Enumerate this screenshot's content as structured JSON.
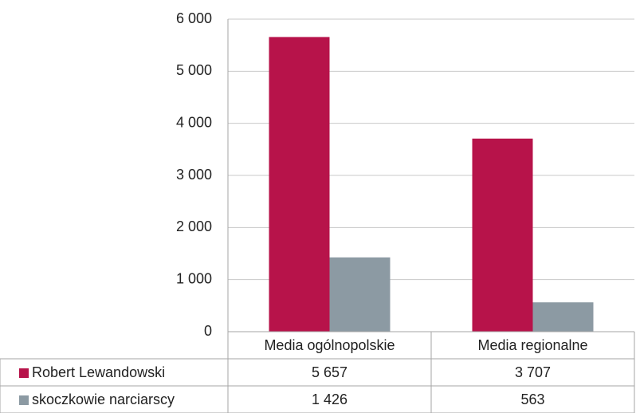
{
  "chart_data": {
    "type": "bar",
    "categories": [
      "Media ogólnopolskie",
      "Media regionalne"
    ],
    "series": [
      {
        "name": "Robert Lewandowski",
        "color": "#b7134a",
        "values": [
          5657,
          3707
        ],
        "value_labels": [
          "5 657",
          "3 707"
        ]
      },
      {
        "name": "skoczkowie narciarscy",
        "color": "#8c9aa3",
        "values": [
          1426,
          563
        ],
        "value_labels": [
          "1 426",
          "563"
        ]
      }
    ],
    "ylim": [
      0,
      6000
    ],
    "yticks": [
      0,
      {
        "value": 1000,
        "label": "1 000"
      },
      {
        "value": 2000,
        "label": "2 000"
      },
      {
        "value": 3000,
        "label": "3 000"
      },
      {
        "value": 4000,
        "label": "4 000"
      },
      {
        "value": 5000,
        "label": "5 000"
      },
      {
        "value": 6000,
        "label": "6 000"
      }
    ],
    "grid": true,
    "legend": "table"
  }
}
